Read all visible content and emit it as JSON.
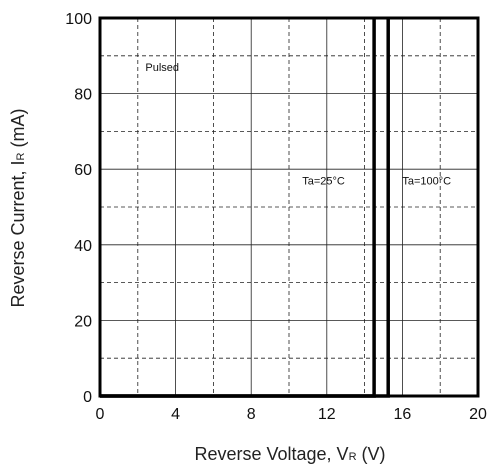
{
  "chart_data": {
    "type": "line",
    "xlabel": {
      "main": "Reverse Voltage, V",
      "sub": "R",
      "unit": " (V)"
    },
    "ylabel": {
      "main": "Reverse Current, I",
      "sub": "R",
      "unit": " (mA)"
    },
    "xlim": [
      0,
      20
    ],
    "ylim": [
      0,
      100
    ],
    "x_major_ticks": [
      0,
      4,
      8,
      12,
      16,
      20
    ],
    "y_major_ticks": [
      0,
      20,
      40,
      60,
      80,
      100
    ],
    "x_tick_labels": [
      "0",
      "4",
      "8",
      "12",
      "16",
      "20"
    ],
    "y_tick_labels": [
      "0",
      "20",
      "40",
      "60",
      "80",
      "100"
    ],
    "minor_grid_step_x": 2,
    "minor_grid_step_y": 10,
    "grid": true,
    "series": [
      {
        "name": "Ta=25°C",
        "x": [
          0,
          14.5,
          14.5
        ],
        "y": [
          0,
          0,
          100
        ]
      },
      {
        "name": "Ta=100°C",
        "x": [
          0,
          15.25,
          15.25
        ],
        "y": [
          0,
          0,
          100
        ]
      }
    ],
    "annotations": [
      {
        "text": "Pulsed",
        "x": 2.4,
        "y": 86
      },
      {
        "text": "Ta=25°C",
        "x": 10.7,
        "y": 56
      },
      {
        "text": "Ta=100°C",
        "x": 16.0,
        "y": 56
      }
    ],
    "line_color": "#000000"
  }
}
